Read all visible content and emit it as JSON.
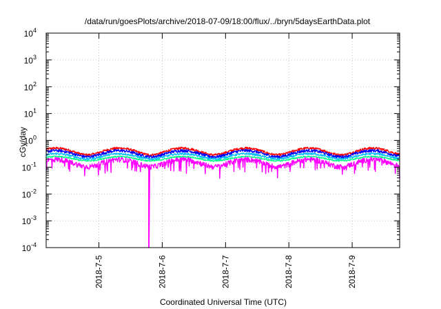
{
  "chart_data": {
    "type": "line",
    "title": "/data/run/goesPlots/archive/2018-07-09/18:00/flux/../bryn/5daysEarthData.plot",
    "xlabel": "Coordinated Universal Time (UTC)",
    "ylabel": "cGy/day",
    "yscale": "log",
    "ylim": [
      0.0001,
      10000
    ],
    "y_ticks": [
      {
        "value": 0.0001,
        "base": "10",
        "exp": "-4"
      },
      {
        "value": 0.001,
        "base": "10",
        "exp": "-3"
      },
      {
        "value": 0.01,
        "base": "10",
        "exp": "-2"
      },
      {
        "value": 0.1,
        "base": "10",
        "exp": "-1"
      },
      {
        "value": 1,
        "base": "10",
        "exp": "0"
      },
      {
        "value": 10,
        "base": "10",
        "exp": "1"
      },
      {
        "value": 100,
        "base": "10",
        "exp": "2"
      },
      {
        "value": 1000,
        "base": "10",
        "exp": "3"
      },
      {
        "value": 10000,
        "base": "10",
        "exp": "4"
      }
    ],
    "xlim": [
      "2018-07-04 04:00",
      "2018-07-09 18:00"
    ],
    "x_ticks": [
      "2018-7-5",
      "2018-7-6",
      "2018-7-7",
      "2018-7-8",
      "2018-7-9"
    ],
    "grid": true,
    "series": [
      {
        "color": "#ff0000",
        "base": 0.4,
        "amp": 0.28,
        "noise": 0.1
      },
      {
        "color": "#0000ff",
        "base": 0.33,
        "amp": 0.26,
        "noise": 0.12
      },
      {
        "color": "#00bbff",
        "base": 0.26,
        "amp": 0.22,
        "noise": 0.08
      },
      {
        "color": "#00ff88",
        "base": 0.21,
        "amp": 0.18,
        "noise": 0.06
      },
      {
        "color": "#ff00ff",
        "base": 0.15,
        "amp": 0.3,
        "noise": 0.22
      }
    ],
    "dropout": {
      "x": "2018-07-05 19:00",
      "min": 0.0001
    }
  }
}
